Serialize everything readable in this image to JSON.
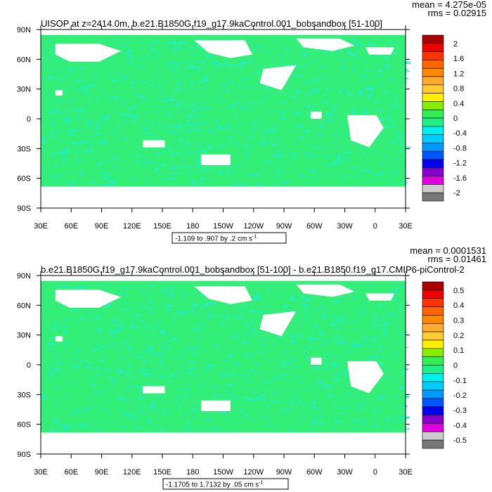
{
  "chart_data": [
    {
      "type": "heatmap",
      "title": "UISOP at z=2414.0m, b.e21.B1850G.f19_g17.9kaControl.001_bobsandbox [51-100]",
      "stats": {
        "mean": "mean = 4.275e-05",
        "rms": "rms = 0.02915"
      },
      "ylabels": [
        "90N",
        "60N",
        "30N",
        "0",
        "30S",
        "60S",
        "90S"
      ],
      "xlabels": [
        "30E",
        "60E",
        "90E",
        "120E",
        "150E",
        "180",
        "150W",
        "120W",
        "90W",
        "60W",
        "30W",
        "0",
        "30E"
      ],
      "contour_info": "-1.109 to .907 by .2 cm s",
      "unit_superscript": "-1",
      "colorbar_labels": [
        "2",
        "1.6",
        "1.2",
        "0.8",
        "0.4",
        "0",
        "-0.4",
        "-0.8",
        "-1.2",
        "-1.6",
        "-2"
      ]
    },
    {
      "type": "heatmap",
      "title": "b.e21.B1850G.f19_g17.9kaControl.001_bobsandbox [51-100] - b.e21.B1850.f19_g17.CMIP6-piControl-2",
      "stats": {
        "mean": "mean = 0.0001531",
        "rms": "rms = 0.01461"
      },
      "ylabels": [
        "90N",
        "60N",
        "30N",
        "0",
        "30S",
        "60S",
        "90S"
      ],
      "xlabels": [
        "30E",
        "60E",
        "90E",
        "120E",
        "150E",
        "180",
        "150W",
        "120W",
        "90W",
        "60W",
        "30W",
        "0",
        "30E"
      ],
      "contour_info": "-1.1705 to 1.7132 by .05 cm s",
      "unit_superscript": "-1",
      "colorbar_labels": [
        "0.5",
        "0.4",
        "0.3",
        "0.2",
        "0.1",
        "0",
        "-0.1",
        "-0.2",
        "-0.3",
        "-0.4",
        "-0.5"
      ]
    }
  ],
  "colors": {
    "ocean_green": "#33ee77",
    "ocean_teal": "#22eec8",
    "land": "#ffffff",
    "colorbar_top": [
      "#aa0000",
      "#ee0000",
      "#ff3300",
      "#ff6600",
      "#ff8800",
      "#ffaa33",
      "#ffcc33",
      "#ffee00",
      "#88ee00",
      "#33ee55",
      "#22ee88"
    ],
    "colorbar_bottom": [
      "#00eeee",
      "#00ccff",
      "#0099ff",
      "#0055ff",
      "#0000ee",
      "#8800cc",
      "#dd00dd",
      "#cccccc",
      "#777777"
    ]
  }
}
